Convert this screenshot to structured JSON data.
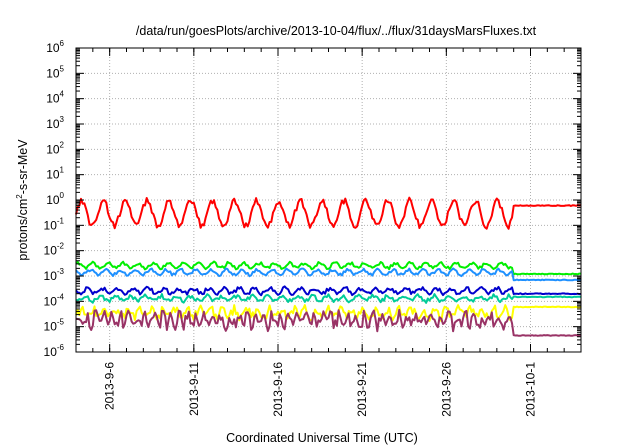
{
  "chart_data": {
    "type": "line",
    "title": "/data/run/goesPlots/archive/2013-10-04/flux/../flux/31daysMarsFluxes.txt",
    "xlabel": "Coordinated Universal Time (UTC)",
    "ylabel_parts": [
      "protons/cm",
      "2",
      "-s-sr-MeV"
    ],
    "x_range": [
      "2013-09-04",
      "2013-10-04"
    ],
    "y_range": [
      1e-06,
      1000000
    ],
    "y_scale": "log",
    "grid": true,
    "x_ticks": [
      "2013-9-6",
      "2013-9-11",
      "2013-9-16",
      "2013-9-21",
      "2013-9-26",
      "2013-10-1"
    ],
    "y_ticks": [
      {
        "base": "10",
        "exp": "-6"
      },
      {
        "base": "10",
        "exp": "-5"
      },
      {
        "base": "10",
        "exp": "-4"
      },
      {
        "base": "10",
        "exp": "-3"
      },
      {
        "base": "10",
        "exp": "-2"
      },
      {
        "base": "10",
        "exp": "-1"
      },
      {
        "base": "10",
        "exp": "0"
      },
      {
        "base": "10",
        "exp": "1"
      },
      {
        "base": "10",
        "exp": "2"
      },
      {
        "base": "10",
        "exp": "3"
      },
      {
        "base": "10",
        "exp": "4"
      },
      {
        "base": "10",
        "exp": "5"
      },
      {
        "base": "10",
        "exp": "6"
      }
    ],
    "series": [
      {
        "color": "#ff0000",
        "base": 0.3,
        "amp": 0.5,
        "noise": 0.12,
        "period_days": 1.3,
        "drop_date": "2013-09-29T22:00",
        "after": 0.6
      },
      {
        "color": "#00ee00",
        "base": 0.0026,
        "amp": 0.1,
        "noise": 0.06,
        "period_days": 0.9,
        "drop_date": "2013-09-30T00:00",
        "after": 0.0012
      },
      {
        "color": "#1e90ff",
        "base": 0.0014,
        "amp": 0.1,
        "noise": 0.06,
        "period_days": 0.9,
        "drop_date": "2013-09-30T00:00",
        "after": 0.0007
      },
      {
        "color": "#0000cc",
        "base": 0.00026,
        "amp": 0.1,
        "noise": 0.08,
        "period_days": 0.9,
        "drop_date": "2013-09-30T00:00",
        "after": 0.0002
      },
      {
        "color": "#00cc99",
        "base": 0.00013,
        "amp": 0.1,
        "noise": 0.08,
        "period_days": 0.9,
        "drop_date": "2013-09-30T00:00",
        "after": 0.00015
      },
      {
        "color": "#ffff00",
        "base": 3.5e-05,
        "amp": 0.15,
        "noise": 0.18,
        "period_days": 0.7,
        "drop_date": "2013-09-30T00:00",
        "after": 6e-05
      },
      {
        "color": "#993366",
        "base": 1.8e-05,
        "amp": 0.2,
        "noise": 0.25,
        "period_days": 0.5,
        "drop_date": "2013-09-29T23:00",
        "after": 4.5e-06
      }
    ]
  }
}
